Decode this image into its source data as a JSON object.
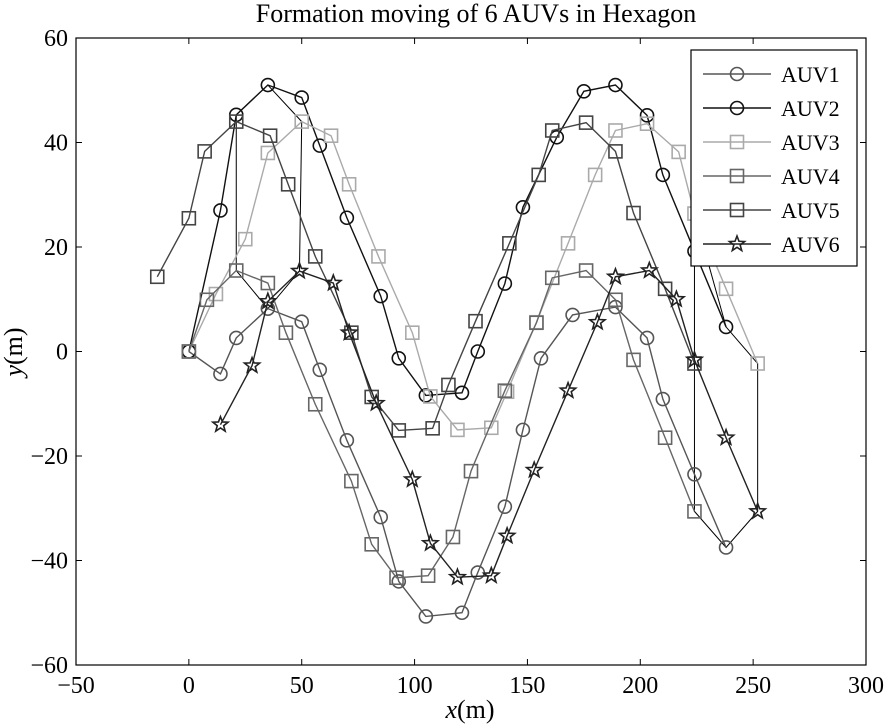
{
  "chart_data": {
    "type": "line",
    "title": "Formation moving of 6 AUVs in Hexagon",
    "xlabel_var": "x",
    "xlabel_unit": "(m)",
    "ylabel_var": "y",
    "ylabel_unit": "(m)",
    "xlim": [
      -50,
      300
    ],
    "ylim": [
      -60,
      60
    ],
    "xticks": [
      -50,
      0,
      50,
      100,
      150,
      200,
      250,
      300
    ],
    "yticks": [
      -60,
      -40,
      -20,
      0,
      20,
      40,
      60
    ],
    "xtick_labels": [
      "−50",
      "0",
      "50",
      "100",
      "150",
      "200",
      "250",
      "300"
    ],
    "ytick_labels": [
      "−60",
      "−40",
      "−20",
      "0",
      "20",
      "40",
      "60"
    ],
    "grid": false,
    "legend_position": "top-right",
    "series": [
      {
        "name": "AUV1",
        "marker": "circle",
        "color": "#555555",
        "points": [
          [
            0,
            0
          ],
          [
            14,
            -4.3
          ],
          [
            21,
            2.6
          ],
          [
            35,
            8.2
          ],
          [
            50,
            5.7
          ],
          [
            58,
            -3.5
          ],
          [
            70,
            -17
          ],
          [
            85,
            -31.7
          ],
          [
            93,
            -44
          ],
          [
            105,
            -50.7
          ],
          [
            121,
            -50
          ],
          [
            128,
            -42.3
          ],
          [
            140,
            -29.7
          ],
          [
            148,
            -15
          ],
          [
            156,
            -1.3
          ],
          [
            170,
            7
          ],
          [
            189,
            8.5
          ],
          [
            203,
            2.6
          ],
          [
            210,
            -9.1
          ],
          [
            224,
            -23.5
          ],
          [
            238,
            -37.5
          ]
        ]
      },
      {
        "name": "AUV2",
        "marker": "circle",
        "color": "#111111",
        "points": [
          [
            0,
            0
          ],
          [
            14,
            27
          ],
          [
            21,
            45.3
          ],
          [
            35,
            51
          ],
          [
            50,
            48.6
          ],
          [
            58,
            39.4
          ],
          [
            70,
            25.6
          ],
          [
            85,
            10.6
          ],
          [
            93,
            -1.3
          ],
          [
            105,
            -8.4
          ],
          [
            121,
            -7.9
          ],
          [
            128,
            0
          ],
          [
            140,
            13
          ],
          [
            148,
            27.6
          ],
          [
            163,
            41
          ],
          [
            175,
            49.8
          ],
          [
            189,
            51
          ],
          [
            203,
            45.2
          ],
          [
            210,
            33.8
          ],
          [
            224,
            19.2
          ],
          [
            238,
            4.7
          ]
        ]
      },
      {
        "name": "AUV3",
        "marker": "square",
        "color": "#aaaaaa",
        "points": [
          [
            0,
            0
          ],
          [
            12,
            11
          ],
          [
            25,
            21.5
          ],
          [
            35,
            38
          ],
          [
            50,
            44
          ],
          [
            63,
            41.3
          ],
          [
            71,
            32
          ],
          [
            84,
            18.2
          ],
          [
            99,
            3.6
          ],
          [
            107,
            -8.6
          ],
          [
            119,
            -15
          ],
          [
            134,
            -14.6
          ],
          [
            141,
            -7.7
          ],
          [
            154,
            5.6
          ],
          [
            168,
            20.7
          ],
          [
            180,
            33.8
          ],
          [
            189,
            42.3
          ],
          [
            203,
            43.6
          ],
          [
            217,
            38.2
          ],
          [
            224,
            26.4
          ],
          [
            238,
            12
          ],
          [
            252,
            -2.3
          ]
        ]
      },
      {
        "name": "AUV4",
        "marker": "square",
        "color": "#666666",
        "points": [
          [
            0,
            0
          ],
          [
            8,
            9.9
          ],
          [
            21,
            15.5
          ],
          [
            35,
            13.1
          ],
          [
            43,
            3.6
          ],
          [
            56,
            -10.1
          ],
          [
            72,
            -24.8
          ],
          [
            81,
            -36.9
          ],
          [
            92,
            -43.3
          ],
          [
            106,
            -42.9
          ],
          [
            117,
            -35.5
          ],
          [
            125,
            -22.9
          ],
          [
            140,
            -7.5
          ],
          [
            154,
            5.5
          ],
          [
            161,
            14.1
          ],
          [
            176,
            15.5
          ],
          [
            189,
            9.9
          ],
          [
            197,
            -1.6
          ],
          [
            211,
            -16.5
          ],
          [
            224,
            -30.6
          ]
        ]
      },
      {
        "name": "AUV5",
        "marker": "square",
        "color": "#444444",
        "points": [
          [
            -14,
            14.3
          ],
          [
            0,
            25.5
          ],
          [
            7,
            38.3
          ],
          [
            21,
            44
          ],
          [
            36,
            41.3
          ],
          [
            44,
            32
          ],
          [
            56,
            18.2
          ],
          [
            72,
            3.6
          ],
          [
            81,
            -8.7
          ],
          [
            93,
            -15.1
          ],
          [
            108,
            -14.7
          ],
          [
            115,
            -6.4
          ],
          [
            127,
            5.8
          ],
          [
            142,
            20.7
          ],
          [
            155,
            33.8
          ],
          [
            161,
            42.3
          ],
          [
            176,
            43.8
          ],
          [
            189,
            38.3
          ],
          [
            197,
            26.5
          ],
          [
            211,
            12
          ],
          [
            224,
            -2.3
          ]
        ]
      },
      {
        "name": "AUV6",
        "marker": "star",
        "color": "#222222",
        "points": [
          [
            14,
            -14
          ],
          [
            28,
            -2.7
          ],
          [
            35,
            9.6
          ],
          [
            49,
            15.4
          ],
          [
            64,
            13.1
          ],
          [
            71,
            3.6
          ],
          [
            83,
            -9.9
          ],
          [
            99,
            -24.5
          ],
          [
            107,
            -36.7
          ],
          [
            119,
            -43.2
          ],
          [
            134,
            -42.9
          ],
          [
            141,
            -35.3
          ],
          [
            153,
            -22.7
          ],
          [
            168,
            -7.5
          ],
          [
            181,
            5.6
          ],
          [
            189,
            14.3
          ],
          [
            204,
            15.5
          ],
          [
            216,
            10
          ],
          [
            224,
            -1.6
          ],
          [
            238,
            -16.5
          ],
          [
            252,
            -30.6
          ]
        ]
      }
    ],
    "formation_links": [
      [
        [
          21,
          45.3
        ],
        [
          21,
          44
        ],
        [
          21,
          15.5
        ],
        [
          35,
          8.2
        ],
        [
          49,
          15.4
        ],
        [
          50,
          44
        ],
        [
          35,
          51
        ],
        [
          21,
          45.3
        ]
      ],
      [
        [
          224,
          19.2
        ],
        [
          224,
          26.4
        ],
        [
          238,
          4.7
        ],
        [
          252,
          -2.3
        ],
        [
          252,
          -30.6
        ],
        [
          238,
          -37.5
        ],
        [
          224,
          -30.6
        ],
        [
          224,
          -2.3
        ],
        [
          224,
          19.2
        ]
      ]
    ]
  }
}
